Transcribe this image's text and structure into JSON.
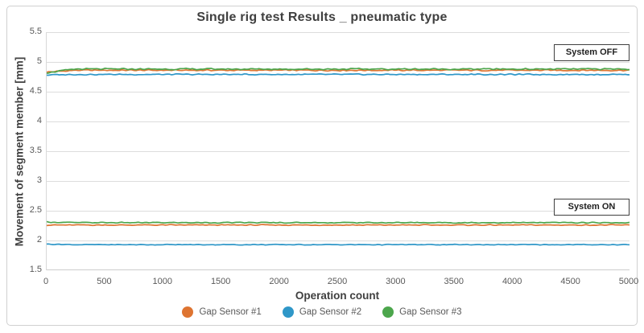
{
  "title": "Single rig test Results _ pneumatic type",
  "chart_data": {
    "type": "line",
    "title": "Single rig test Results _ pneumatic type",
    "xlabel": "Operation count",
    "ylabel": "Movement of segment member [mm]",
    "xlim": [
      0,
      5000
    ],
    "ylim": [
      1.5,
      5.5
    ],
    "x_ticks": [
      0,
      500,
      1000,
      1500,
      2000,
      2500,
      3000,
      3500,
      4000,
      4500,
      5000
    ],
    "y_ticks": [
      5.5,
      5,
      4.5,
      4,
      3.5,
      3,
      2.5,
      2,
      1.5
    ],
    "grid": "horizontal",
    "legend_position": "bottom",
    "annotations": [
      {
        "label": "System OFF",
        "describes_level_mm": 4.85
      },
      {
        "label": "System ON",
        "describes_level_mm": 2.25
      }
    ],
    "series": [
      {
        "name": "Gap Sensor #1",
        "color": "#de7431",
        "states": {
          "system_off": {
            "start": 4.83,
            "value": 4.86
          },
          "system_on": {
            "start": 2.26,
            "value": 2.26
          }
        },
        "noise_mm": 0.013
      },
      {
        "name": "Gap Sensor #2",
        "color": "#2f97c8",
        "states": {
          "system_off": {
            "start": 4.78,
            "value": 4.79
          },
          "system_on": {
            "start": 1.94,
            "value": 1.93
          }
        },
        "noise_mm": 0.011
      },
      {
        "name": "Gap Sensor #3",
        "color": "#4ca64c",
        "states": {
          "system_off": {
            "start": 4.82,
            "value": 4.88
          },
          "system_on": {
            "start": 2.31,
            "value": 2.3
          }
        },
        "noise_mm": 0.014
      }
    ]
  }
}
